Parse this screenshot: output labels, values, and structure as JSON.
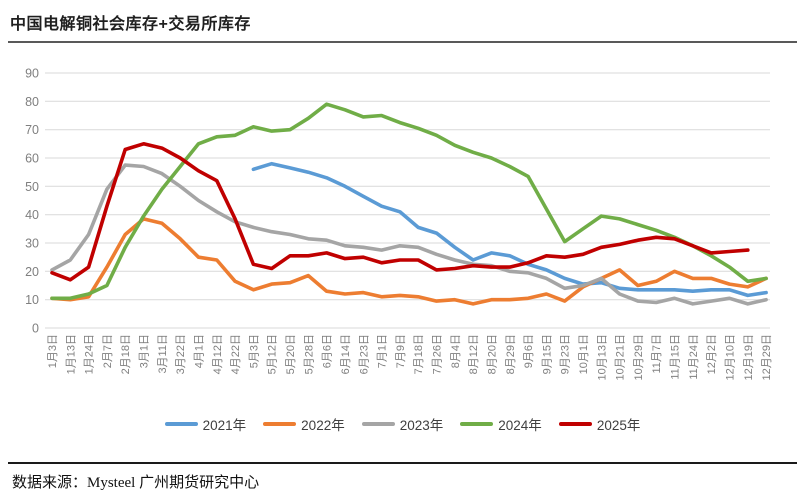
{
  "page": {
    "title": "中国电解铜社会库存+交易所库存",
    "source": "数据来源：Mysteel  广州期货研究中心"
  },
  "chart_data": {
    "type": "line",
    "title": "中国电解铜社会库存+交易所库存",
    "grid": "horizontal",
    "legend_position": "bottom",
    "ylim": [
      0,
      90
    ],
    "y_ticks": [
      0,
      10,
      20,
      30,
      40,
      50,
      60,
      70,
      80,
      90
    ],
    "categories": [
      "1月3日",
      "1月13日",
      "1月24日",
      "2月7日",
      "2月18日",
      "3月1日",
      "3月11日",
      "3月22日",
      "4月1日",
      "4月12日",
      "4月22日",
      "5月3日",
      "5月12日",
      "5月20日",
      "5月28日",
      "6月6日",
      "6月14日",
      "6月23日",
      "7月1日",
      "7月9日",
      "7月18日",
      "7月26日",
      "8月4日",
      "8月12日",
      "8月20日",
      "8月29日",
      "9月6日",
      "9月15日",
      "9月23日",
      "10月1日",
      "10月13日",
      "10月21日",
      "10月29日",
      "11月7日",
      "11月15日",
      "11月24日",
      "12月2日",
      "12月10日",
      "12月19日",
      "12月29日"
    ],
    "series": [
      {
        "name": "2021年",
        "color": "#5B9BD5",
        "values": [
          null,
          null,
          null,
          null,
          null,
          null,
          null,
          null,
          null,
          null,
          null,
          56,
          58,
          56.5,
          55,
          53,
          50,
          46.5,
          43,
          41,
          35.5,
          33.5,
          28.5,
          24,
          26.5,
          25.5,
          22.5,
          20.5,
          17.5,
          15.5,
          16,
          14,
          13.5,
          13.5,
          13.5,
          13,
          13.5,
          13.5,
          11.5,
          12.5
        ]
      },
      {
        "name": "2022年",
        "color": "#ED7D31",
        "values": [
          10.5,
          10,
          11,
          21.5,
          33,
          38.5,
          37,
          31.5,
          25,
          24,
          16.5,
          13.5,
          15.5,
          16,
          18.5,
          13,
          12,
          12.5,
          11,
          11.5,
          11,
          9.5,
          10,
          8.5,
          10,
          10,
          10.5,
          12,
          9.5,
          14.5,
          17.5,
          20.5,
          15,
          16.5,
          20,
          17.5,
          17.5,
          15.5,
          14.5,
          17.5
        ]
      },
      {
        "name": "2023年",
        "color": "#A5A5A5",
        "values": [
          20.5,
          24,
          33,
          49,
          57.5,
          57,
          54.5,
          50,
          45,
          41,
          37.5,
          35.5,
          34,
          33,
          31.5,
          31,
          29,
          28.5,
          27.5,
          29,
          28.5,
          26,
          24,
          22.5,
          22,
          20,
          19.5,
          17.5,
          14,
          15,
          17.5,
          12,
          9.5,
          9,
          10.5,
          8.5,
          9.5,
          10.5,
          8.5,
          10
        ]
      },
      {
        "name": "2024年",
        "color": "#70AD47",
        "values": [
          10.5,
          10.5,
          12,
          15,
          28.5,
          39.5,
          49,
          57,
          65,
          67.5,
          68,
          71,
          69.5,
          70,
          74,
          79,
          77,
          74.5,
          75,
          72.5,
          70.5,
          68,
          64.5,
          62,
          60,
          57,
          53.5,
          42,
          30.5,
          35,
          39.5,
          38.5,
          36.5,
          34.5,
          32,
          29,
          25.5,
          21.5,
          16.5,
          17.5
        ]
      },
      {
        "name": "2025年",
        "color": "#C00000",
        "values": [
          19.5,
          17,
          21.5,
          43,
          63,
          65,
          63.5,
          60,
          55.5,
          52,
          38.5,
          22.5,
          21,
          25.5,
          25.5,
          26.5,
          24.5,
          25,
          23,
          24,
          24,
          20.5,
          21,
          22,
          21.5,
          21.5,
          23,
          25.5,
          25,
          26,
          28.5,
          29.5,
          31,
          32,
          31.5,
          29,
          26.5,
          27,
          27.5,
          null
        ]
      }
    ]
  }
}
